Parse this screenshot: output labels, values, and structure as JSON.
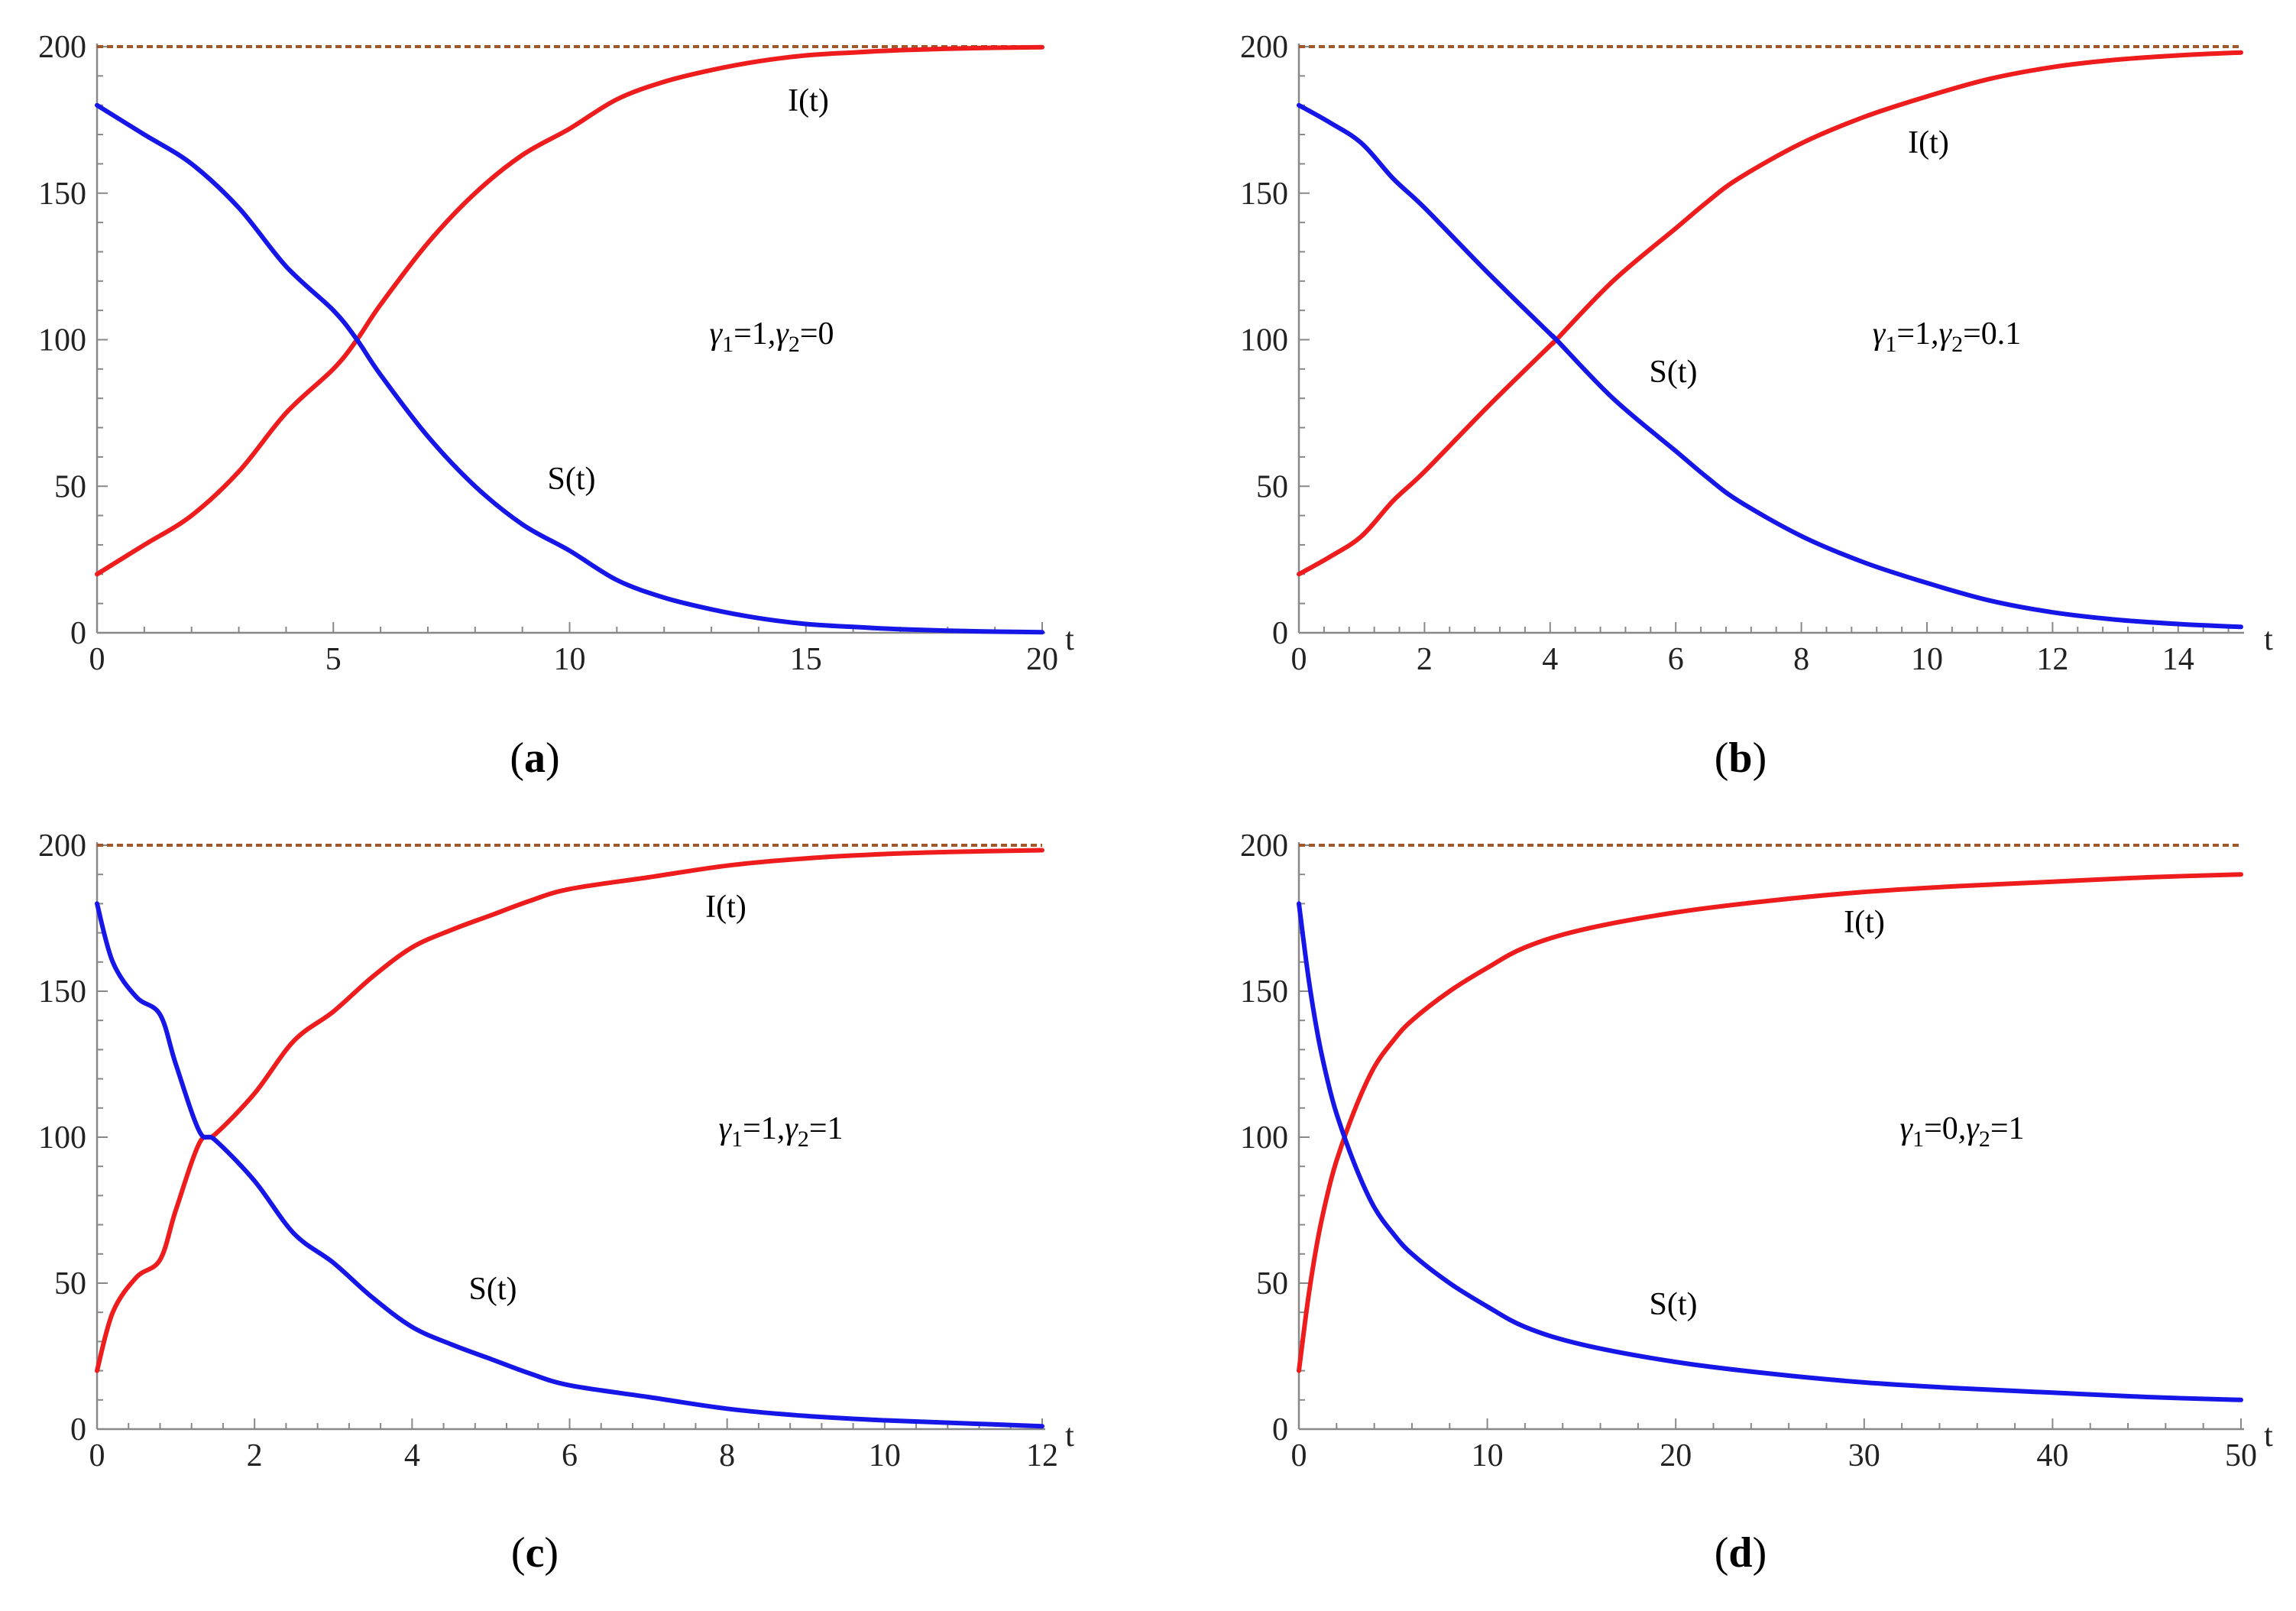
{
  "chart_data": [
    {
      "type": "line",
      "caption": "a",
      "xlabel": "t",
      "xlim": [
        0,
        20
      ],
      "ylim": [
        0,
        200
      ],
      "xticks": [
        "0",
        "5",
        "10",
        "15",
        "20"
      ],
      "yticks": [
        "0",
        "50",
        "100",
        "150",
        "200"
      ],
      "param_text": "γ1=1,γ2=0",
      "param_sub": {
        "g1": "1",
        "g2": "0"
      },
      "carrying_capacity": 200,
      "series": [
        {
          "name": "I(t)",
          "color": "#ee1c1c",
          "initial": 20,
          "final": 200,
          "values": [
            [
              0,
              20
            ],
            [
              1,
              30
            ],
            [
              2,
              40
            ],
            [
              3,
              55
            ],
            [
              4,
              75
            ],
            [
              5,
              90
            ],
            [
              5.5,
              100
            ],
            [
              6,
              112
            ],
            [
              7,
              133
            ],
            [
              8,
              150
            ],
            [
              9,
              163
            ],
            [
              10,
              172
            ],
            [
              11,
              182
            ],
            [
              12,
              188
            ],
            [
              13,
              192
            ],
            [
              14,
              195
            ],
            [
              15,
              197
            ],
            [
              16,
              198
            ],
            [
              17,
              198.8
            ],
            [
              18,
              199.3
            ],
            [
              19,
              199.6
            ],
            [
              20,
              199.8
            ]
          ]
        },
        {
          "name": "S(t)",
          "color": "#1616e8",
          "initial": 180,
          "final": 0,
          "values": [
            [
              0,
              180
            ],
            [
              1,
              170
            ],
            [
              2,
              160
            ],
            [
              3,
              145
            ],
            [
              4,
              125
            ],
            [
              5,
              110
            ],
            [
              5.5,
              100
            ],
            [
              6,
              88
            ],
            [
              7,
              67
            ],
            [
              8,
              50
            ],
            [
              9,
              37
            ],
            [
              10,
              28
            ],
            [
              11,
              18
            ],
            [
              12,
              12
            ],
            [
              13,
              8
            ],
            [
              14,
              5
            ],
            [
              15,
              3
            ],
            [
              16,
              2
            ],
            [
              17,
              1.2
            ],
            [
              18,
              0.7
            ],
            [
              19,
              0.4
            ],
            [
              20,
              0.2
            ]
          ]
        }
      ]
    },
    {
      "type": "line",
      "caption": "b",
      "xlabel": "t",
      "xlim": [
        0,
        15
      ],
      "ylim": [
        0,
        200
      ],
      "xticks": [
        "0",
        "2",
        "4",
        "6",
        "8",
        "10",
        "12",
        "14"
      ],
      "yticks": [
        "0",
        "50",
        "100",
        "150",
        "200"
      ],
      "param_text": "γ1=1,γ2=0.1",
      "param_sub": {
        "g1": "1",
        "g2": "0.1"
      },
      "carrying_capacity": 200,
      "series": [
        {
          "name": "I(t)",
          "color": "#ee1c1c",
          "initial": 20,
          "final": 198,
          "values": [
            [
              0,
              20
            ],
            [
              0.5,
              26
            ],
            [
              1,
              33
            ],
            [
              1.5,
              45
            ],
            [
              2,
              55
            ],
            [
              3,
              77
            ],
            [
              4,
              98
            ],
            [
              4.1,
              100
            ],
            [
              5,
              120
            ],
            [
              6,
              138
            ],
            [
              6.5,
              147
            ],
            [
              7,
              155
            ],
            [
              8,
              167
            ],
            [
              9,
              176
            ],
            [
              10,
              183
            ],
            [
              11,
              189
            ],
            [
              12,
              193
            ],
            [
              13,
              195.5
            ],
            [
              14,
              197
            ],
            [
              15,
              198
            ]
          ]
        },
        {
          "name": "S(t)",
          "color": "#1616e8",
          "initial": 180,
          "final": 2,
          "values": [
            [
              0,
              180
            ],
            [
              0.5,
              174
            ],
            [
              1,
              167
            ],
            [
              1.5,
              155
            ],
            [
              2,
              145
            ],
            [
              3,
              123
            ],
            [
              4,
              102
            ],
            [
              4.1,
              100
            ],
            [
              5,
              80
            ],
            [
              6,
              62
            ],
            [
              6.5,
              53
            ],
            [
              7,
              45
            ],
            [
              8,
              33
            ],
            [
              9,
              24
            ],
            [
              10,
              17
            ],
            [
              11,
              11
            ],
            [
              12,
              7
            ],
            [
              13,
              4.5
            ],
            [
              14,
              3
            ],
            [
              15,
              2
            ]
          ]
        }
      ]
    },
    {
      "type": "line",
      "caption": "c",
      "xlabel": "t",
      "xlim": [
        0,
        12
      ],
      "ylim": [
        0,
        200
      ],
      "xticks": [
        "0",
        "2",
        "4",
        "6",
        "8",
        "10",
        "12"
      ],
      "yticks": [
        "0",
        "50",
        "100",
        "150",
        "200"
      ],
      "param_text": "γ1=1,γ2=1",
      "param_sub": {
        "g1": "1",
        "g2": "1"
      },
      "carrying_capacity": 200,
      "series": [
        {
          "name": "I(t)",
          "color": "#ee1c1c",
          "initial": 20,
          "final": 198,
          "values": [
            [
              0,
              20
            ],
            [
              0.2,
              40
            ],
            [
              0.5,
              52
            ],
            [
              0.8,
              58
            ],
            [
              1,
              75
            ],
            [
              1.3,
              98
            ],
            [
              1.5,
              101
            ],
            [
              2,
              115
            ],
            [
              2.5,
              133
            ],
            [
              3,
              143
            ],
            [
              3.5,
              155
            ],
            [
              4,
              165
            ],
            [
              4.5,
              171
            ],
            [
              5,
              176
            ],
            [
              5.5,
              181
            ],
            [
              6,
              185
            ],
            [
              7,
              189
            ],
            [
              8,
              193
            ],
            [
              9,
              195.5
            ],
            [
              10,
              197
            ],
            [
              11,
              197.8
            ],
            [
              12,
              198.3
            ]
          ]
        },
        {
          "name": "S(t)",
          "color": "#1616e8",
          "initial": 180,
          "final": 1,
          "values": [
            [
              0,
              180
            ],
            [
              0.2,
              160
            ],
            [
              0.5,
              148
            ],
            [
              0.8,
              142
            ],
            [
              1,
              125
            ],
            [
              1.3,
              102
            ],
            [
              1.5,
              99
            ],
            [
              2,
              85
            ],
            [
              2.5,
              67
            ],
            [
              3,
              57
            ],
            [
              3.5,
              45
            ],
            [
              4,
              35
            ],
            [
              4.5,
              29
            ],
            [
              5,
              24
            ],
            [
              5.5,
              19
            ],
            [
              6,
              15
            ],
            [
              7,
              11
            ],
            [
              8,
              7
            ],
            [
              9,
              4.5
            ],
            [
              10,
              3
            ],
            [
              11,
              2
            ],
            [
              12,
              1
            ]
          ]
        }
      ]
    },
    {
      "type": "line",
      "caption": "d",
      "xlabel": "t",
      "xlim": [
        0,
        50
      ],
      "ylim": [
        0,
        200
      ],
      "xticks": [
        "0",
        "10",
        "20",
        "30",
        "40",
        "50"
      ],
      "yticks": [
        "0",
        "50",
        "100",
        "150",
        "200"
      ],
      "param_text": "γ1=0,γ2=1",
      "param_sub": {
        "g1": "0",
        "g2": "1"
      },
      "carrying_capacity": 200,
      "series": [
        {
          "name": "I(t)",
          "color": "#ee1c1c",
          "initial": 20,
          "final": 190,
          "values": [
            [
              0,
              20
            ],
            [
              0.5,
              45
            ],
            [
              1,
              65
            ],
            [
              1.5,
              80
            ],
            [
              2,
              92
            ],
            [
              3,
              110
            ],
            [
              4,
              124
            ],
            [
              5,
              133
            ],
            [
              6,
              140
            ],
            [
              8,
              150
            ],
            [
              10,
              158
            ],
            [
              12,
              165
            ],
            [
              15,
              171
            ],
            [
              20,
              177
            ],
            [
              25,
              181
            ],
            [
              30,
              184
            ],
            [
              35,
              186
            ],
            [
              40,
              187.5
            ],
            [
              45,
              189
            ],
            [
              50,
              190
            ]
          ]
        },
        {
          "name": "S(t)",
          "color": "#1616e8",
          "initial": 180,
          "final": 10,
          "values": [
            [
              0,
              180
            ],
            [
              0.5,
              155
            ],
            [
              1,
              135
            ],
            [
              1.5,
              120
            ],
            [
              2,
              108
            ],
            [
              3,
              90
            ],
            [
              4,
              76
            ],
            [
              5,
              67
            ],
            [
              6,
              60
            ],
            [
              8,
              50
            ],
            [
              10,
              42
            ],
            [
              12,
              35
            ],
            [
              15,
              29
            ],
            [
              20,
              23
            ],
            [
              25,
              19
            ],
            [
              30,
              16
            ],
            [
              35,
              14
            ],
            [
              40,
              12.5
            ],
            [
              45,
              11
            ],
            [
              50,
              10
            ]
          ]
        }
      ]
    }
  ]
}
